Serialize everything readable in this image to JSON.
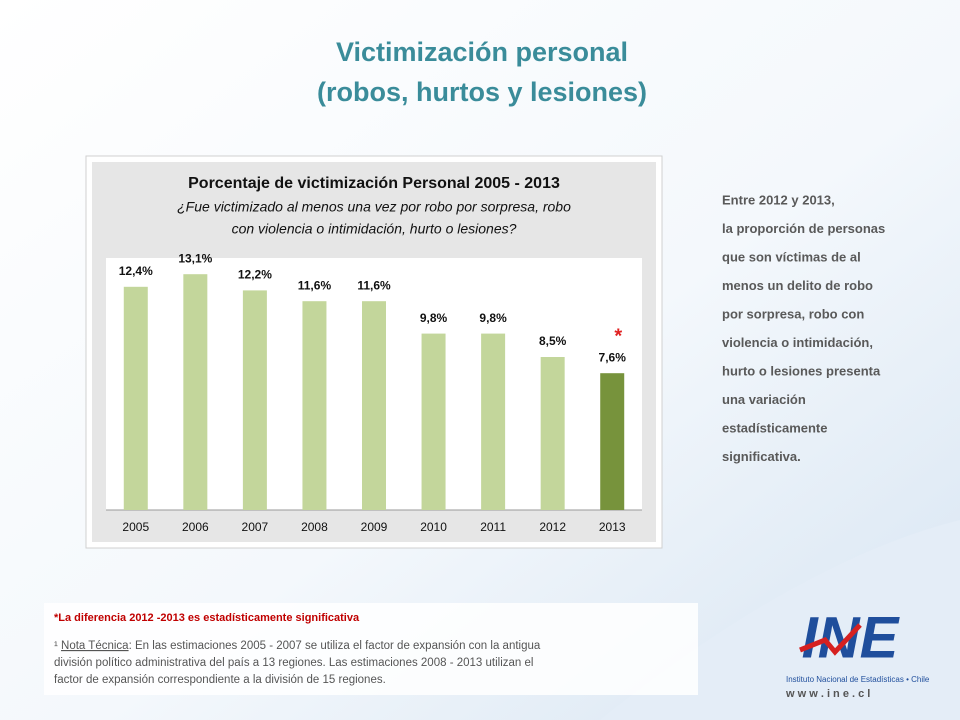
{
  "slide": {
    "title_lines": [
      "Victimización personal",
      "(robos, hurtos y lesiones)"
    ],
    "side_text": [
      "Entre 2012 y 2013,",
      "la proporción de personas",
      "que son víctimas de al",
      "menos un delito de robo",
      "por sorpresa, robo con",
      "violencia o intimidación,",
      "hurto o lesiones presenta",
      "una variación",
      "estadísticamente",
      "significativa."
    ],
    "footnote_red": "*La diferencia 2012 -2013 es estadísticamente  significativa",
    "note_mark": "¹ ",
    "note_link": "Nota Técnica",
    "note_lines": [
      ": En las estimaciones 2005 - 2007 se utiliza el factor de expansión con la antigua",
      "división político administrativa del país a 13 regiones. Las estimaciones 2008 - 2013 utilizan el",
      "factor de expansión correspondiente a la división de 15 regiones."
    ],
    "logo": {
      "mark": "INE",
      "name": "Instituto Nacional de Estadísticas • Chile",
      "url": "w w w . i n e . c l"
    }
  },
  "chart_data": {
    "type": "bar",
    "title": "Porcentaje de victimización  Personal 2005 - 2013",
    "subtitle_lines": [
      "¿Fue victimizado al menos una vez por robo por sorpresa, robo",
      "con violencia o intimidación, hurto o lesiones?"
    ],
    "categories": [
      "2005",
      "2006",
      "2007",
      "2008",
      "2009",
      "2010",
      "2011",
      "2012",
      "2013"
    ],
    "values": [
      12.4,
      13.1,
      12.2,
      11.6,
      11.6,
      9.8,
      9.8,
      8.5,
      7.6
    ],
    "value_labels": [
      "12,4%",
      "13,1%",
      "12,2%",
      "11,6%",
      "11,6%",
      "9,8%",
      "9,8%",
      "8,5%",
      "7,6%"
    ],
    "colors": [
      "#c3d69b",
      "#c3d69b",
      "#c3d69b",
      "#c3d69b",
      "#c3d69b",
      "#c3d69b",
      "#c3d69b",
      "#c3d69b",
      "#77933c"
    ],
    "annotations": [
      {
        "text": "*",
        "category": "2013",
        "color": "#e02020"
      }
    ],
    "ylim": [
      0,
      14
    ]
  }
}
